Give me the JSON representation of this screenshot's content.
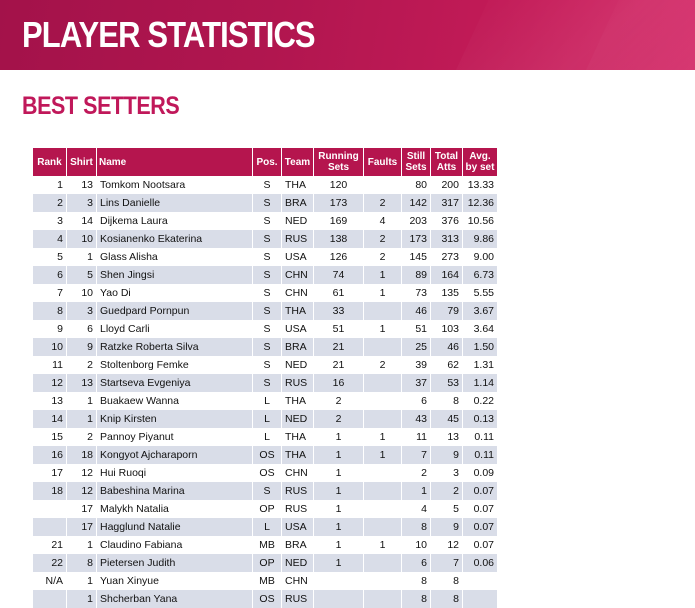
{
  "header": {
    "title": "PLAYER STATISTICS"
  },
  "section": {
    "title": "BEST SETTERS"
  },
  "colors": {
    "accent": "#b5154e",
    "row_alt": "#d9dde8"
  },
  "table": {
    "columns": [
      "Rank",
      "Shirt",
      "Name",
      "Pos.",
      "Team",
      "Running Sets",
      "Faults",
      "Still Sets",
      "Total Atts",
      "Avg. by set"
    ],
    "rows": [
      [
        "1",
        "13",
        "Tomkom Nootsara",
        "S",
        "THA",
        "120",
        "",
        "80",
        "200",
        "13.33"
      ],
      [
        "2",
        "3",
        "Lins Danielle",
        "S",
        "BRA",
        "173",
        "2",
        "142",
        "317",
        "12.36"
      ],
      [
        "3",
        "14",
        "Dijkema Laura",
        "S",
        "NED",
        "169",
        "4",
        "203",
        "376",
        "10.56"
      ],
      [
        "4",
        "10",
        "Kosianenko Ekaterina",
        "S",
        "RUS",
        "138",
        "2",
        "173",
        "313",
        "9.86"
      ],
      [
        "5",
        "1",
        "Glass Alisha",
        "S",
        "USA",
        "126",
        "2",
        "145",
        "273",
        "9.00"
      ],
      [
        "6",
        "5",
        "Shen Jingsi",
        "S",
        "CHN",
        "74",
        "1",
        "89",
        "164",
        "6.73"
      ],
      [
        "7",
        "10",
        "Yao Di",
        "S",
        "CHN",
        "61",
        "1",
        "73",
        "135",
        "5.55"
      ],
      [
        "8",
        "3",
        "Guedpard Pornpun",
        "S",
        "THA",
        "33",
        "",
        "46",
        "79",
        "3.67"
      ],
      [
        "9",
        "6",
        "Lloyd Carli",
        "S",
        "USA",
        "51",
        "1",
        "51",
        "103",
        "3.64"
      ],
      [
        "10",
        "9",
        "Ratzke Roberta Silva",
        "S",
        "BRA",
        "21",
        "",
        "25",
        "46",
        "1.50"
      ],
      [
        "11",
        "2",
        "Stoltenborg Femke",
        "S",
        "NED",
        "21",
        "2",
        "39",
        "62",
        "1.31"
      ],
      [
        "12",
        "13",
        "Startseva Evgeniya",
        "S",
        "RUS",
        "16",
        "",
        "37",
        "53",
        "1.14"
      ],
      [
        "13",
        "1",
        "Buakaew Wanna",
        "L",
        "THA",
        "2",
        "",
        "6",
        "8",
        "0.22"
      ],
      [
        "14",
        "1",
        "Knip Kirsten",
        "L",
        "NED",
        "2",
        "",
        "43",
        "45",
        "0.13"
      ],
      [
        "15",
        "2",
        "Pannoy Piyanut",
        "L",
        "THA",
        "1",
        "1",
        "11",
        "13",
        "0.11"
      ],
      [
        "16",
        "18",
        "Kongyot Ajcharaporn",
        "OS",
        "THA",
        "1",
        "1",
        "7",
        "9",
        "0.11"
      ],
      [
        "17",
        "12",
        "Hui Ruoqi",
        "OS",
        "CHN",
        "1",
        "",
        "2",
        "3",
        "0.09"
      ],
      [
        "18",
        "12",
        "Babeshina Marina",
        "S",
        "RUS",
        "1",
        "",
        "1",
        "2",
        "0.07"
      ],
      [
        "",
        "17",
        "Malykh Natalia",
        "OP",
        "RUS",
        "1",
        "",
        "4",
        "5",
        "0.07"
      ],
      [
        "",
        "17",
        "Hagglund Natalie",
        "L",
        "USA",
        "1",
        "",
        "8",
        "9",
        "0.07"
      ],
      [
        "21",
        "1",
        "Claudino Fabiana",
        "MB",
        "BRA",
        "1",
        "1",
        "10",
        "12",
        "0.07"
      ],
      [
        "22",
        "8",
        "Pietersen Judith",
        "OP",
        "NED",
        "1",
        "",
        "6",
        "7",
        "0.06"
      ],
      [
        "N/A",
        "1",
        "Yuan Xinyue",
        "MB",
        "CHN",
        "",
        "",
        "8",
        "8",
        ""
      ],
      [
        "",
        "1",
        "Shcherban Yana",
        "OS",
        "RUS",
        "",
        "",
        "8",
        "8",
        ""
      ]
    ]
  }
}
